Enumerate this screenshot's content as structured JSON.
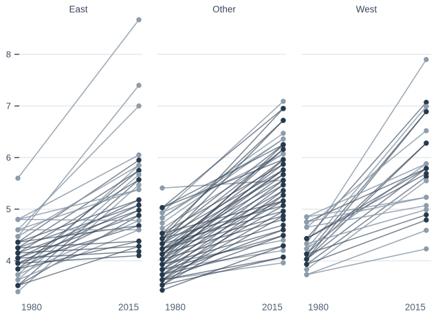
{
  "chart_data": {
    "type": "line",
    "subtype": "slopegraph-faceted",
    "x": [
      1980,
      2015
    ],
    "x_labels": [
      "1980",
      "2015"
    ],
    "y_tick_labels": [
      "8",
      "7",
      "6",
      "5",
      "4"
    ],
    "y_ticks": [
      8,
      7,
      6,
      5,
      4
    ],
    "ylim": [
      3.3,
      8.8
    ],
    "grid": "horizontal-only",
    "legend": "none",
    "colors": {
      "dark": "#273a4d",
      "light": "#8d9cab",
      "gridline": "#dadee3"
    },
    "facets": [
      {
        "title": "East",
        "lines": [
          [
            5.6,
            8.67,
            "l"
          ],
          [
            4.47,
            7.4,
            "l"
          ],
          [
            4.6,
            7.0,
            "l"
          ],
          [
            4.8,
            6.05,
            "l"
          ],
          [
            4.36,
            5.95,
            "d"
          ],
          [
            4.47,
            5.85,
            "l"
          ],
          [
            3.73,
            5.85,
            "l"
          ],
          [
            4.25,
            5.75,
            "d"
          ],
          [
            3.84,
            5.75,
            "d"
          ],
          [
            3.63,
            5.67,
            "l"
          ],
          [
            4.15,
            5.57,
            "d"
          ],
          [
            3.52,
            5.57,
            "d"
          ],
          [
            3.4,
            5.47,
            "l"
          ],
          [
            4.8,
            5.38,
            "l"
          ],
          [
            4.6,
            5.38,
            "l"
          ],
          [
            4.36,
            5.18,
            "d"
          ],
          [
            4.05,
            5.18,
            "d"
          ],
          [
            4.25,
            5.08,
            "d"
          ],
          [
            3.95,
            5.08,
            "d"
          ],
          [
            4.15,
            4.98,
            "d"
          ],
          [
            3.84,
            4.98,
            "d"
          ],
          [
            4.05,
            4.88,
            "d"
          ],
          [
            3.52,
            4.88,
            "d"
          ],
          [
            4.8,
            4.78,
            "l"
          ],
          [
            3.73,
            4.78,
            "l"
          ],
          [
            3.95,
            4.68,
            "d"
          ],
          [
            4.36,
            4.68,
            "d"
          ],
          [
            4.6,
            4.6,
            "l"
          ],
          [
            3.63,
            4.6,
            "l"
          ],
          [
            3.84,
            4.38,
            "d"
          ],
          [
            4.25,
            4.38,
            "d"
          ],
          [
            3.52,
            4.28,
            "d"
          ],
          [
            4.15,
            4.28,
            "d"
          ],
          [
            4.05,
            4.18,
            "d"
          ],
          [
            3.95,
            4.1,
            "d"
          ]
        ]
      },
      {
        "title": "Other",
        "lines": [
          [
            5.41,
            5.56,
            "l"
          ],
          [
            4.93,
            7.09,
            "l"
          ],
          [
            4.83,
            6.47,
            "l"
          ],
          [
            4.73,
            6.36,
            "l"
          ],
          [
            4.63,
            6.07,
            "l"
          ],
          [
            4.83,
            6.36,
            "l"
          ],
          [
            3.63,
            3.96,
            "l"
          ],
          [
            3.83,
            4.2,
            "l"
          ],
          [
            3.93,
            4.4,
            "l"
          ],
          [
            4.93,
            6.07,
            "l"
          ],
          [
            5.03,
            6.95,
            "d"
          ],
          [
            4.53,
            6.72,
            "d"
          ],
          [
            4.43,
            6.25,
            "d"
          ],
          [
            4.33,
            6.16,
            "d"
          ],
          [
            4.23,
            5.96,
            "d"
          ],
          [
            4.13,
            5.87,
            "d"
          ],
          [
            4.03,
            5.76,
            "d"
          ],
          [
            3.93,
            5.67,
            "d"
          ],
          [
            3.83,
            5.56,
            "d"
          ],
          [
            3.73,
            5.47,
            "d"
          ],
          [
            3.63,
            5.36,
            "d"
          ],
          [
            3.53,
            5.27,
            "d"
          ],
          [
            5.03,
            5.96,
            "d"
          ],
          [
            4.53,
            5.87,
            "d"
          ],
          [
            4.43,
            5.76,
            "d"
          ],
          [
            4.33,
            5.67,
            "d"
          ],
          [
            4.23,
            5.56,
            "d"
          ],
          [
            4.13,
            5.47,
            "d"
          ],
          [
            4.03,
            5.36,
            "d"
          ],
          [
            3.93,
            5.27,
            "d"
          ],
          [
            3.83,
            5.16,
            "d"
          ],
          [
            3.73,
            5.07,
            "d"
          ],
          [
            3.63,
            4.96,
            "d"
          ],
          [
            3.53,
            4.87,
            "d"
          ],
          [
            4.53,
            5.16,
            "d"
          ],
          [
            4.43,
            5.07,
            "d"
          ],
          [
            4.33,
            4.96,
            "d"
          ],
          [
            4.23,
            4.87,
            "d"
          ],
          [
            4.13,
            4.8,
            "d"
          ],
          [
            4.03,
            4.69,
            "d"
          ],
          [
            3.93,
            4.6,
            "d"
          ],
          [
            3.83,
            4.49,
            "d"
          ],
          [
            3.73,
            4.29,
            "d"
          ],
          [
            3.63,
            4.07,
            "d"
          ],
          [
            3.53,
            4.07,
            "d"
          ],
          [
            5.03,
            6.25,
            "d"
          ],
          [
            4.43,
            6.95,
            "d"
          ],
          [
            4.33,
            6.72,
            "d"
          ],
          [
            4.13,
            6.16,
            "d"
          ],
          [
            4.03,
            6.25,
            "d"
          ],
          [
            3.93,
            5.96,
            "d"
          ],
          [
            4.23,
            5.16,
            "d"
          ],
          [
            4.13,
            5.76,
            "d"
          ],
          [
            3.73,
            4.6,
            "d"
          ],
          [
            3.63,
            4.49,
            "d"
          ],
          [
            3.43,
            4.29,
            "d"
          ]
        ]
      },
      {
        "title": "West",
        "lines": [
          [
            4.33,
            7.9,
            "l"
          ],
          [
            4.43,
            7.07,
            "d"
          ],
          [
            4.23,
            6.99,
            "l"
          ],
          [
            4.13,
            6.89,
            "d"
          ],
          [
            4.03,
            6.89,
            "d"
          ],
          [
            4.65,
            6.52,
            "l"
          ],
          [
            4.03,
            6.28,
            "d"
          ],
          [
            4.13,
            6.28,
            "d"
          ],
          [
            4.85,
            5.88,
            "l"
          ],
          [
            4.23,
            5.88,
            "l"
          ],
          [
            4.43,
            5.79,
            "d"
          ],
          [
            4.03,
            5.79,
            "d"
          ],
          [
            4.75,
            5.79,
            "d"
          ],
          [
            4.43,
            5.69,
            "d"
          ],
          [
            3.93,
            5.63,
            "d"
          ],
          [
            3.83,
            5.55,
            "l"
          ],
          [
            4.85,
            5.23,
            "l"
          ],
          [
            4.75,
            5.23,
            "l"
          ],
          [
            4.65,
            5.07,
            "l"
          ],
          [
            4.33,
            4.99,
            "l"
          ],
          [
            4.13,
            4.89,
            "d"
          ],
          [
            3.93,
            4.79,
            "d"
          ],
          [
            3.73,
            4.59,
            "l"
          ],
          [
            3.73,
            4.23,
            "l"
          ]
        ]
      }
    ]
  }
}
